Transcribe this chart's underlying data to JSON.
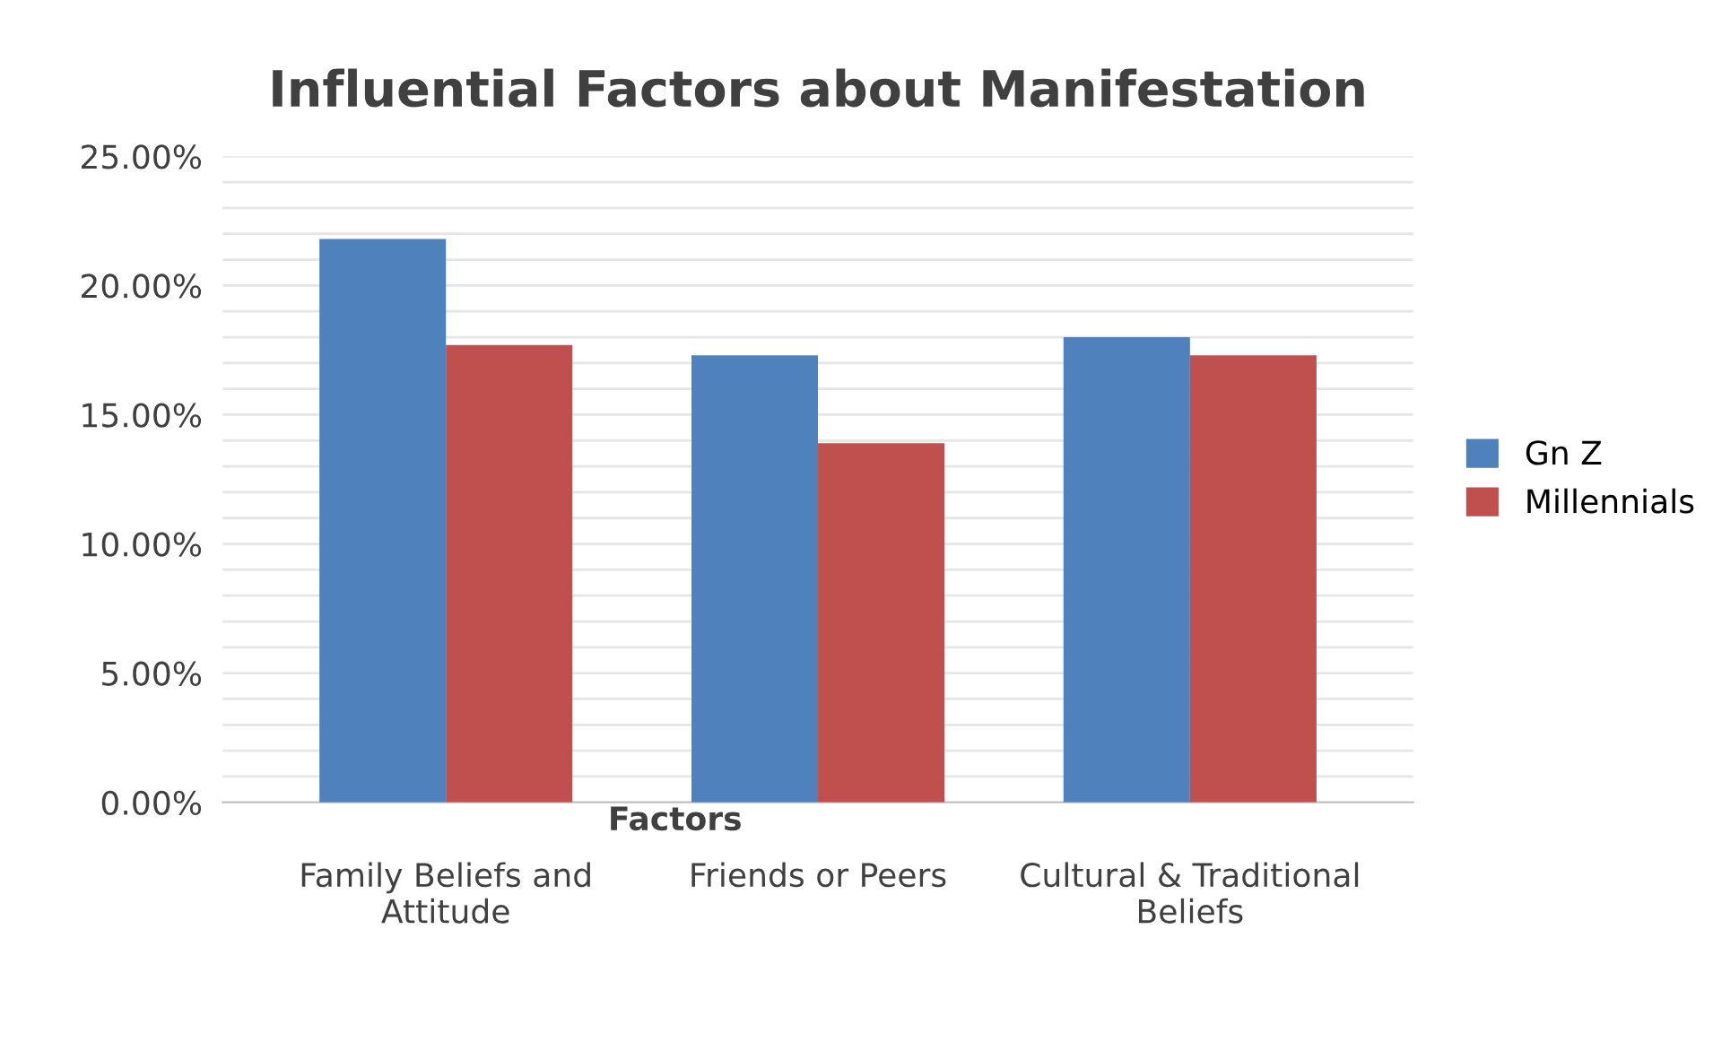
{
  "chart_data": {
    "type": "bar",
    "title": "Influential Factors about Manifestation",
    "xlabel": "Factors",
    "categories": [
      "Family Beliefs and\nAttitude",
      "Friends or Peers",
      "Cultural & Traditional\nBeliefs"
    ],
    "series": [
      {
        "name": "Gn Z",
        "color": "#4f81bd",
        "values": [
          21.8,
          17.3,
          18.0
        ]
      },
      {
        "name": "Millennials",
        "color": "#c0504d",
        "values": [
          17.7,
          13.9,
          17.3
        ]
      }
    ],
    "ylim": [
      0,
      25
    ],
    "yticks": [
      {
        "value": 0,
        "label": "0.00%"
      },
      {
        "value": 1,
        "label": null
      },
      {
        "value": 2,
        "label": null
      },
      {
        "value": 3,
        "label": null
      },
      {
        "value": 4,
        "label": null
      },
      {
        "value": 5,
        "label": "5.00%"
      },
      {
        "value": 6,
        "label": null
      },
      {
        "value": 7,
        "label": null
      },
      {
        "value": 8,
        "label": null
      },
      {
        "value": 9,
        "label": null
      },
      {
        "value": 10,
        "label": "10.00%"
      },
      {
        "value": 11,
        "label": null
      },
      {
        "value": 12,
        "label": null
      },
      {
        "value": 13,
        "label": null
      },
      {
        "value": 14,
        "label": null
      },
      {
        "value": 15,
        "label": "15.00%"
      },
      {
        "value": 16,
        "label": null
      },
      {
        "value": 17,
        "label": null
      },
      {
        "value": 18,
        "label": null
      },
      {
        "value": 19,
        "label": null
      },
      {
        "value": 20,
        "label": "20.00%"
      },
      {
        "value": 21,
        "label": null
      },
      {
        "value": 22,
        "label": null
      },
      {
        "value": 23,
        "label": null
      },
      {
        "value": 24,
        "label": null
      },
      {
        "value": 25,
        "label": "25.00%"
      }
    ],
    "grid": "y",
    "legend": "right"
  }
}
